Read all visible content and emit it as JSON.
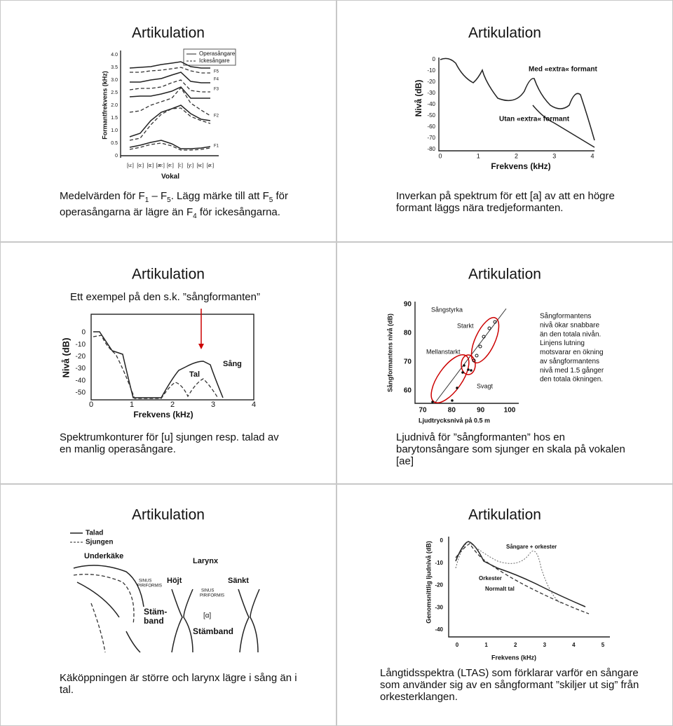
{
  "slides": [
    {
      "title": "Artikulation",
      "figure": {
        "y_label": "Formantfrekvens (kHz)",
        "y_ticks": [
          "4.0",
          "3.5",
          "3.0",
          "2.5",
          "2.0",
          "1.5",
          "1.0",
          "0.5",
          "0"
        ],
        "x_label": "Vokal",
        "categories": [
          "[u:]",
          "[o:]",
          "[ɑ:]",
          "[æ:]",
          "[e:]",
          "[i:]",
          "[y:]",
          "[ʉ:]",
          "[ø:]"
        ],
        "legend": [
          "Operasångare",
          "Ickesångare"
        ],
        "formants": [
          "F5",
          "F4",
          "F3",
          "F2",
          "F1"
        ]
      },
      "caption_parts": [
        "Medelvärden för  F",
        "1",
        " – F",
        "5",
        ". Lägg märke till att F",
        "5",
        " för operasångarna är lägre än F",
        "4",
        " för ickesångarna."
      ]
    },
    {
      "title": "Artikulation",
      "figure": {
        "y_label": "Nivå (dB)",
        "y_ticks": [
          "0",
          "-10",
          "-20",
          "-30",
          "-40",
          "-50",
          "-60",
          "-70",
          "-80"
        ],
        "x_label": "Frekvens (kHz)",
        "x_ticks": [
          "0",
          "1",
          "2",
          "3",
          "4"
        ],
        "annotations": [
          "Med «extra« formant",
          "Utan «extra« formant"
        ]
      },
      "caption": "Inverkan på spektrum för ett [a] av att en högre formant läggs nära tredjeformanten."
    },
    {
      "title": "Artikulation",
      "subtitle": "Ett exempel på den s.k. ”sångformanten”",
      "figure": {
        "y_label": "Nivå (dB)",
        "y_ticks": [
          "0",
          "-10",
          "-20",
          "-30",
          "-40",
          "-50"
        ],
        "x_label": "Frekvens (kHz)",
        "x_ticks": [
          "0",
          "1",
          "2",
          "3",
          "4"
        ],
        "annotations": [
          "Tal",
          "Sång"
        ]
      },
      "caption": "Spektrumkonturer för [u] sjungen resp. talad av en manlig operasångare."
    },
    {
      "title": "Artikulation",
      "figure": {
        "y_label": "Sångformantens nivå (dB)",
        "y_ticks": [
          "90",
          "80",
          "70",
          "60"
        ],
        "x_label": "Ljudtrycksnivå på 0.5 m",
        "x_ticks": [
          "70",
          "80",
          "90",
          "100"
        ],
        "annotations": [
          "Sångstyrka",
          "Starkt",
          "Mellanstarkt",
          "Svagt"
        ]
      },
      "note_lines": [
        "Sångformantens",
        "nivå ökar snabbare",
        "än den totala nivån.",
        "Linjens lutning",
        "motsvarar en ökning",
        "av sångformantens",
        "nivå med 1.5 gånger",
        "den totala ökningen."
      ],
      "caption": "Ljudnivå för ”sångformanten” hos en barytonsångare som sjunger en skala på vokalen [ae]"
    },
    {
      "title": "Artikulation",
      "figure": {
        "legend": [
          "Talad",
          "Sjungen"
        ],
        "labels": [
          "Underkäke",
          "Larynx",
          "Höjt",
          "Sänkt",
          "SINUS",
          "PIRIFORMIS",
          "SINUS",
          "PIRIFORMIS",
          "Stäm-",
          "band",
          "[ɑ]",
          "Stämband"
        ]
      },
      "caption": "Käköppningen är större och larynx lägre i sång än i tal."
    },
    {
      "title": "Artikulation",
      "figure": {
        "y_label": "Genomsnittlig ljudnivå (dB)",
        "y_ticks": [
          "0",
          "-10",
          "-20",
          "-30",
          "-40"
        ],
        "x_label": "Frekvens (kHz)",
        "x_ticks": [
          "0",
          "1",
          "2",
          "3",
          "4",
          "5"
        ],
        "annotations": [
          "Sångare + orkester",
          "Orkester",
          "Normalt tal"
        ]
      },
      "caption": "Långtidsspektra (LTAS) som förklarar varför en sångare som använder sig av en sångformant ”skiljer ut sig” från orkesterklangen."
    }
  ]
}
